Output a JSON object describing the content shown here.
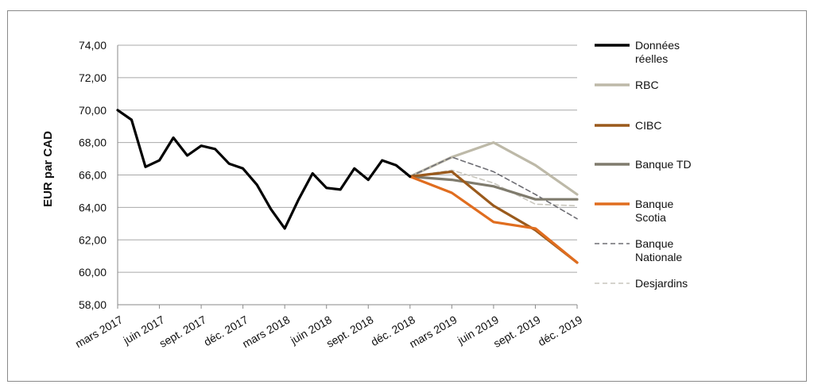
{
  "chart_data": {
    "type": "line",
    "ylabel": "EUR par CAD",
    "xlabel": "",
    "title": "",
    "ylim": [
      58,
      74
    ],
    "y_ticks": [
      "58,00",
      "60,00",
      "62,00",
      "64,00",
      "66,00",
      "68,00",
      "70,00",
      "72,00",
      "74,00"
    ],
    "x_ticks": [
      "mars 2017",
      "juin 2017",
      "sept. 2017",
      "déc. 2017",
      "mars 2018",
      "juin 2018",
      "sept. 2018",
      "déc. 2018",
      "mars 2019",
      "juin 2019",
      "sept. 2019",
      "déc. 2019"
    ],
    "x_months": 33,
    "grid": "horizontal",
    "legend_position": "right",
    "series": [
      {
        "name": "Données réelles",
        "color": "#000000",
        "dash": "solid",
        "points": [
          [
            0,
            70.0
          ],
          [
            1,
            69.4
          ],
          [
            2,
            66.5
          ],
          [
            3,
            66.9
          ],
          [
            4,
            68.3
          ],
          [
            5,
            67.2
          ],
          [
            6,
            67.8
          ],
          [
            7,
            67.6
          ],
          [
            8,
            66.7
          ],
          [
            9,
            66.4
          ],
          [
            10,
            65.4
          ],
          [
            11,
            63.9
          ],
          [
            12,
            62.7
          ],
          [
            13,
            64.5
          ],
          [
            14,
            66.1
          ],
          [
            15,
            65.2
          ],
          [
            16,
            65.1
          ],
          [
            17,
            66.4
          ],
          [
            18,
            65.7
          ],
          [
            19,
            66.9
          ],
          [
            20,
            66.6
          ],
          [
            21,
            65.9
          ]
        ]
      },
      {
        "name": "RBC",
        "color": "#bdb9a8",
        "dash": "solid",
        "points": [
          [
            21,
            65.9
          ],
          [
            24,
            67.1
          ],
          [
            27,
            68.0
          ],
          [
            30,
            66.6
          ],
          [
            33,
            64.8
          ]
        ]
      },
      {
        "name": "CIBC",
        "color": "#9a5a1c",
        "dash": "solid",
        "points": [
          [
            21,
            65.9
          ],
          [
            24,
            66.2
          ],
          [
            27,
            64.1
          ],
          [
            30,
            62.6
          ],
          [
            33,
            60.6
          ]
        ]
      },
      {
        "name": "Banque TD",
        "color": "#7f7b6d",
        "dash": "solid",
        "points": [
          [
            21,
            65.9
          ],
          [
            24,
            65.7
          ],
          [
            27,
            65.3
          ],
          [
            30,
            64.5
          ],
          [
            33,
            64.5
          ]
        ]
      },
      {
        "name": "Banque Scotia",
        "color": "#e06d1f",
        "dash": "solid",
        "points": [
          [
            21,
            65.9
          ],
          [
            24,
            64.9
          ],
          [
            27,
            63.1
          ],
          [
            30,
            62.7
          ],
          [
            33,
            60.6
          ]
        ]
      },
      {
        "name": "Banque Nationale",
        "color": "#6e6e74",
        "dash": "dashed",
        "points": [
          [
            21,
            65.9
          ],
          [
            24,
            67.1
          ],
          [
            27,
            66.2
          ],
          [
            30,
            64.8
          ],
          [
            33,
            63.3
          ]
        ]
      },
      {
        "name": "Desjardins",
        "color": "#c8c6bd",
        "dash": "dashed",
        "points": [
          [
            21,
            65.9
          ],
          [
            24,
            66.3
          ],
          [
            27,
            65.5
          ],
          [
            30,
            64.2
          ],
          [
            33,
            64.1
          ]
        ]
      }
    ],
    "legend": [
      {
        "lines": [
          "Données",
          "réelles"
        ]
      },
      {
        "lines": [
          "RBC"
        ]
      },
      {
        "lines": [
          "CIBC"
        ]
      },
      {
        "lines": [
          "Banque TD"
        ]
      },
      {
        "lines": [
          "Banque",
          "Scotia"
        ]
      },
      {
        "lines": [
          "Banque",
          "Nationale"
        ]
      },
      {
        "lines": [
          "Desjardins"
        ]
      }
    ]
  }
}
